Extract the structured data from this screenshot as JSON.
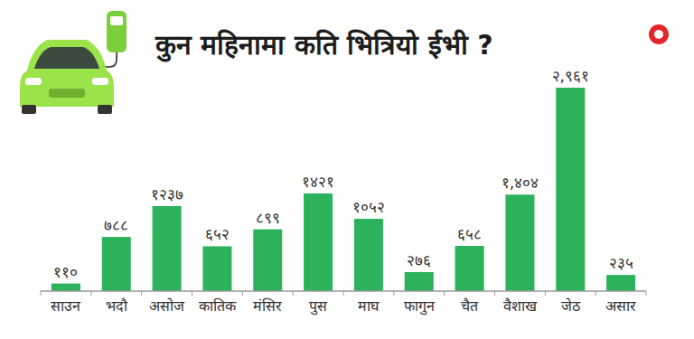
{
  "chart_data": {
    "type": "bar",
    "title": "कुन महिनामा कति भित्रियो ईभी ?",
    "categories": [
      "साउन",
      "भदौ",
      "असोज",
      "कातिक",
      "मंसिर",
      "पुस",
      "माघ",
      "फागुन",
      "चैत",
      "वैशाख",
      "जेठ",
      "असार"
    ],
    "values": [
      110,
      788,
      1237,
      652,
      899,
      1421,
      1052,
      276,
      658,
      1404,
      2961,
      235
    ],
    "value_labels": [
      "११०",
      "७८८",
      "१२३७",
      "६५२",
      "८९९",
      "१४२१",
      "१०५२",
      "२७६",
      "६५८",
      "१,४०४",
      "२,९६१",
      "२३५"
    ],
    "color": "#2bb25a",
    "ylim": [
      0,
      3300
    ],
    "data_labels": true,
    "tick_labels": "x",
    "grid": false
  }
}
